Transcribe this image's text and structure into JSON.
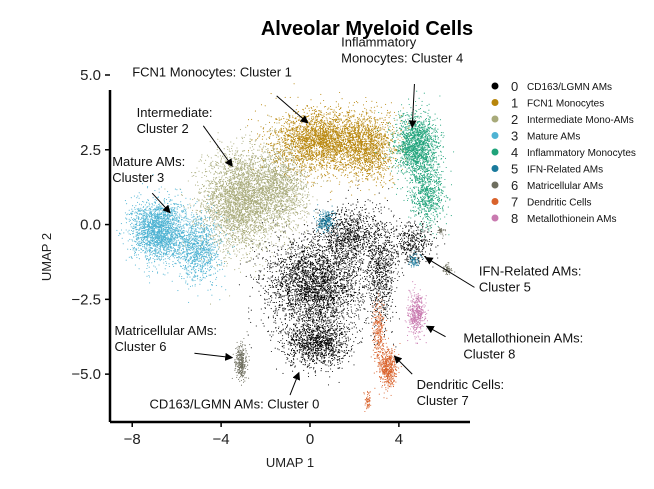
{
  "chart_data": {
    "type": "scatter",
    "title": "Alveolar Myeloid Cells",
    "xlabel": "UMAP 1",
    "ylabel": "UMAP 2",
    "xlim": [
      -9,
      7.2
    ],
    "ylim": [
      -6.6,
      5.1
    ],
    "xticks": [
      "−8",
      "−4",
      "0",
      "4"
    ],
    "xtick_values": [
      -8,
      -4,
      0,
      4
    ],
    "yticks": [
      "5.0",
      "2.5",
      "0.0",
      "−2.5",
      "−5.0"
    ],
    "ytick_values": [
      5,
      2.5,
      0,
      -2.5,
      -5
    ],
    "grid": false,
    "legend_position": "right",
    "series": [
      {
        "id": "0",
        "name": "CD163/LGMN AMs",
        "color": "#000000",
        "regions": [
          {
            "cx": 0.2,
            "cy": -2.0,
            "sx": 2.0,
            "sy": 1.4,
            "n": 3000
          },
          {
            "cx": 0.3,
            "cy": -4.0,
            "sx": 1.3,
            "sy": 0.7,
            "n": 1200
          },
          {
            "cx": 1.8,
            "cy": -0.4,
            "sx": 1.2,
            "sy": 0.9,
            "n": 900
          },
          {
            "cx": 3.2,
            "cy": -1.6,
            "sx": 0.6,
            "sy": 1.6,
            "n": 700
          },
          {
            "cx": 4.6,
            "cy": -0.6,
            "sx": 0.9,
            "sy": 0.6,
            "n": 400
          }
        ]
      },
      {
        "id": "1",
        "name": "FCN1 Monocytes",
        "color": "#B8860B",
        "regions": [
          {
            "cx": 0.5,
            "cy": 2.8,
            "sx": 1.9,
            "sy": 0.9,
            "n": 2600
          },
          {
            "cx": 2.6,
            "cy": 2.6,
            "sx": 1.2,
            "sy": 1.0,
            "n": 1400
          }
        ]
      },
      {
        "id": "2",
        "name": "Intermediate Mono-AMs",
        "color": "#A8AA7A",
        "regions": [
          {
            "cx": -3.2,
            "cy": 0.8,
            "sx": 1.5,
            "sy": 1.5,
            "n": 3000
          },
          {
            "cx": -1.4,
            "cy": 1.2,
            "sx": 1.2,
            "sy": 1.3,
            "n": 1600
          }
        ]
      },
      {
        "id": "3",
        "name": "Mature AMs",
        "color": "#4EB3D3",
        "regions": [
          {
            "cx": -6.8,
            "cy": -0.2,
            "sx": 1.1,
            "sy": 0.9,
            "n": 2200
          },
          {
            "cx": -5.0,
            "cy": -0.8,
            "sx": 0.9,
            "sy": 1.0,
            "n": 1000
          }
        ]
      },
      {
        "id": "4",
        "name": "Inflammatory Monocytes",
        "color": "#1FA37A",
        "regions": [
          {
            "cx": 4.8,
            "cy": 2.6,
            "sx": 0.9,
            "sy": 1.0,
            "n": 1600
          },
          {
            "cx": 5.3,
            "cy": 1.0,
            "sx": 0.7,
            "sy": 0.9,
            "n": 700
          }
        ]
      },
      {
        "id": "5",
        "name": "IFN-Related AMs",
        "color": "#1A7A9C",
        "regions": [
          {
            "cx": 0.7,
            "cy": 0.1,
            "sx": 0.35,
            "sy": 0.35,
            "n": 220
          },
          {
            "cx": 4.7,
            "cy": -1.2,
            "sx": 0.25,
            "sy": 0.2,
            "n": 70
          }
        ]
      },
      {
        "id": "6",
        "name": "Matricellular AMs",
        "color": "#6E6E5E",
        "regions": [
          {
            "cx": -3.1,
            "cy": -4.6,
            "sx": 0.25,
            "sy": 0.55,
            "n": 300
          },
          {
            "cx": 6.2,
            "cy": -1.5,
            "sx": 0.2,
            "sy": 0.15,
            "n": 60
          },
          {
            "cx": 5.9,
            "cy": -0.2,
            "sx": 0.15,
            "sy": 0.15,
            "n": 40
          }
        ]
      },
      {
        "id": "7",
        "name": "Dendritic Cells",
        "color": "#D9622B",
        "regions": [
          {
            "cx": 3.5,
            "cy": -4.8,
            "sx": 0.35,
            "sy": 0.6,
            "n": 500
          },
          {
            "cx": 3.1,
            "cy": -3.5,
            "sx": 0.25,
            "sy": 0.9,
            "n": 250
          },
          {
            "cx": 2.6,
            "cy": -5.9,
            "sx": 0.12,
            "sy": 0.25,
            "n": 60
          }
        ]
      },
      {
        "id": "8",
        "name": "Metallothionein AMs",
        "color": "#C97AB0",
        "regions": [
          {
            "cx": 4.8,
            "cy": -3.0,
            "sx": 0.35,
            "sy": 0.6,
            "n": 450
          }
        ]
      }
    ],
    "annotations": [
      {
        "id": "c1",
        "lines": [
          "FCN1 Monocytes: Cluster 1"
        ],
        "anchor": "start",
        "text_pos": [
          -8,
          4.95
        ],
        "arrow_from": [
          -1.5,
          4.3
        ],
        "arrow_to": [
          -0.1,
          3.4
        ]
      },
      {
        "id": "c4",
        "lines": [
          "Inflammatory",
          "Monocytes: Cluster 4"
        ],
        "anchor": "start",
        "text_pos": [
          1.4,
          5.95
        ],
        "arrow_from": [
          4.7,
          4.7
        ],
        "arrow_to": [
          4.6,
          3.25
        ]
      },
      {
        "id": "c2",
        "lines": [
          "Intermediate:",
          "Cluster 2"
        ],
        "anchor": "start",
        "text_pos": [
          -7.8,
          3.6
        ],
        "arrow_from": [
          -4.8,
          3.3
        ],
        "arrow_to": [
          -3.5,
          1.95
        ]
      },
      {
        "id": "c3",
        "lines": [
          "Mature AMs:",
          "Cluster 3"
        ],
        "anchor": "start",
        "text_pos": [
          -8.9,
          1.95
        ],
        "arrow_from": [
          -7.1,
          1.05
        ],
        "arrow_to": [
          -6.3,
          0.4
        ]
      },
      {
        "id": "c5",
        "lines": [
          "IFN-Related AMs:",
          "Cluster 5"
        ],
        "anchor": "start",
        "text_pos": [
          7.6,
          -1.7
        ],
        "arrow_from": [
          7.4,
          -2.1
        ],
        "arrow_to": [
          5.2,
          -1.1
        ]
      },
      {
        "id": "c6",
        "lines": [
          "Matricellular AMs:",
          "Cluster 6"
        ],
        "anchor": "start",
        "text_pos": [
          -8.8,
          -3.7
        ],
        "arrow_from": [
          -5.2,
          -4.3
        ],
        "arrow_to": [
          -3.5,
          -4.45
        ]
      },
      {
        "id": "c8",
        "lines": [
          "Metallothionein AMs:",
          "Cluster 8"
        ],
        "anchor": "start",
        "text_pos": [
          6.9,
          -3.95
        ],
        "arrow_from": [
          6.1,
          -3.75
        ],
        "arrow_to": [
          5.25,
          -3.4
        ]
      },
      {
        "id": "c7",
        "lines": [
          "Dendritic Cells:",
          "Cluster 7"
        ],
        "anchor": "start",
        "text_pos": [
          4.8,
          -5.5
        ],
        "arrow_from": [
          4.6,
          -5.0
        ],
        "arrow_to": [
          3.8,
          -4.4
        ]
      },
      {
        "id": "c0",
        "lines": [
          "CD163/LGMN AMs: Cluster 0"
        ],
        "anchor": "middle",
        "text_pos": [
          -3.4,
          -6.15
        ],
        "arrow_from": [
          -0.9,
          -5.7
        ],
        "arrow_to": [
          -0.5,
          -4.95
        ]
      }
    ]
  }
}
